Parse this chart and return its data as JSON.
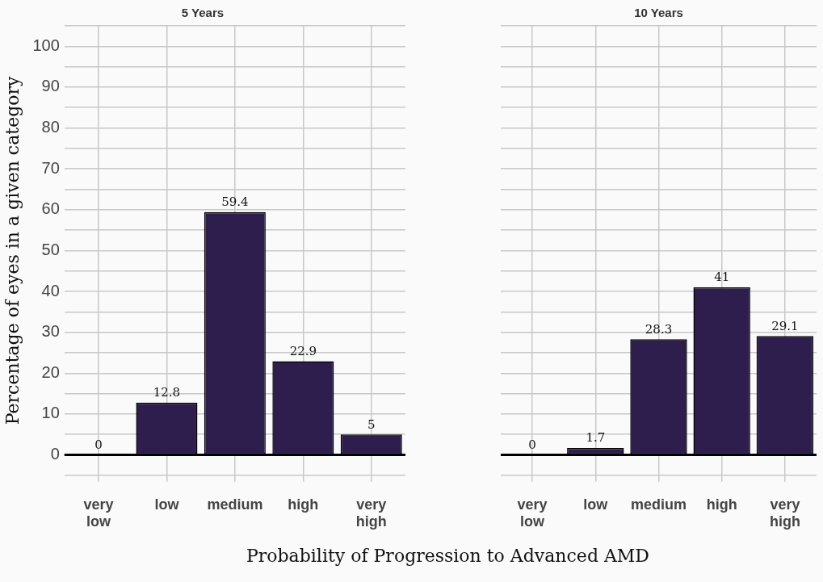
{
  "chart_data": [
    {
      "type": "bar",
      "title": "5 Years",
      "ylabel": "Percentage of eyes in a given category",
      "xlabel": "Probability of Progression to Advanced AMD",
      "categories": [
        "very low",
        "low",
        "medium",
        "high",
        "very high"
      ],
      "values": [
        0,
        12.8,
        59.4,
        22.9,
        5
      ],
      "color": "#2e1e4e",
      "ylim": [
        -5,
        105
      ],
      "yticks": [
        {
          "value": -5,
          "label": null
        },
        0,
        {
          "value": 5,
          "label": null
        },
        10,
        {
          "value": 15,
          "label": null
        },
        20,
        {
          "value": 25,
          "label": null
        },
        30,
        {
          "value": 35,
          "label": null
        },
        40,
        {
          "value": 45,
          "label": null
        },
        50,
        {
          "value": 55,
          "label": null
        },
        60,
        {
          "value": 65,
          "label": null
        },
        70,
        {
          "value": 75,
          "label": null
        },
        80,
        {
          "value": 85,
          "label": null
        },
        90,
        {
          "value": 95,
          "label": null
        },
        100,
        {
          "value": 105,
          "label": null
        }
      ],
      "grid": true,
      "legend": false,
      "data_labels": true,
      "ref_lines": [
        {
          "axis": "y",
          "value": 0,
          "color": "#000000"
        }
      ]
    },
    {
      "type": "bar",
      "title": "10 Years",
      "categories": [
        "very low",
        "low",
        "medium",
        "high",
        "very high"
      ],
      "values": [
        0,
        1.7,
        28.3,
        41,
        29.1
      ],
      "color": "#2e1e4e",
      "ylim": [
        -5,
        105
      ],
      "yticks": [
        {
          "value": -5,
          "label": null
        },
        0,
        {
          "value": 5,
          "label": null
        },
        10,
        {
          "value": 15,
          "label": null
        },
        20,
        {
          "value": 25,
          "label": null
        },
        30,
        {
          "value": 35,
          "label": null
        },
        40,
        {
          "value": 45,
          "label": null
        },
        50,
        {
          "value": 55,
          "label": null
        },
        60,
        {
          "value": 65,
          "label": null
        },
        70,
        {
          "value": 75,
          "label": null
        },
        80,
        {
          "value": 85,
          "label": null
        },
        90,
        {
          "value": 95,
          "label": null
        },
        100,
        {
          "value": 105,
          "label": null
        }
      ],
      "grid": true,
      "legend": false,
      "data_labels": true,
      "tick_labels": "x",
      "ref_lines": [
        {
          "axis": "y",
          "value": 0,
          "color": "#000000"
        }
      ]
    }
  ]
}
